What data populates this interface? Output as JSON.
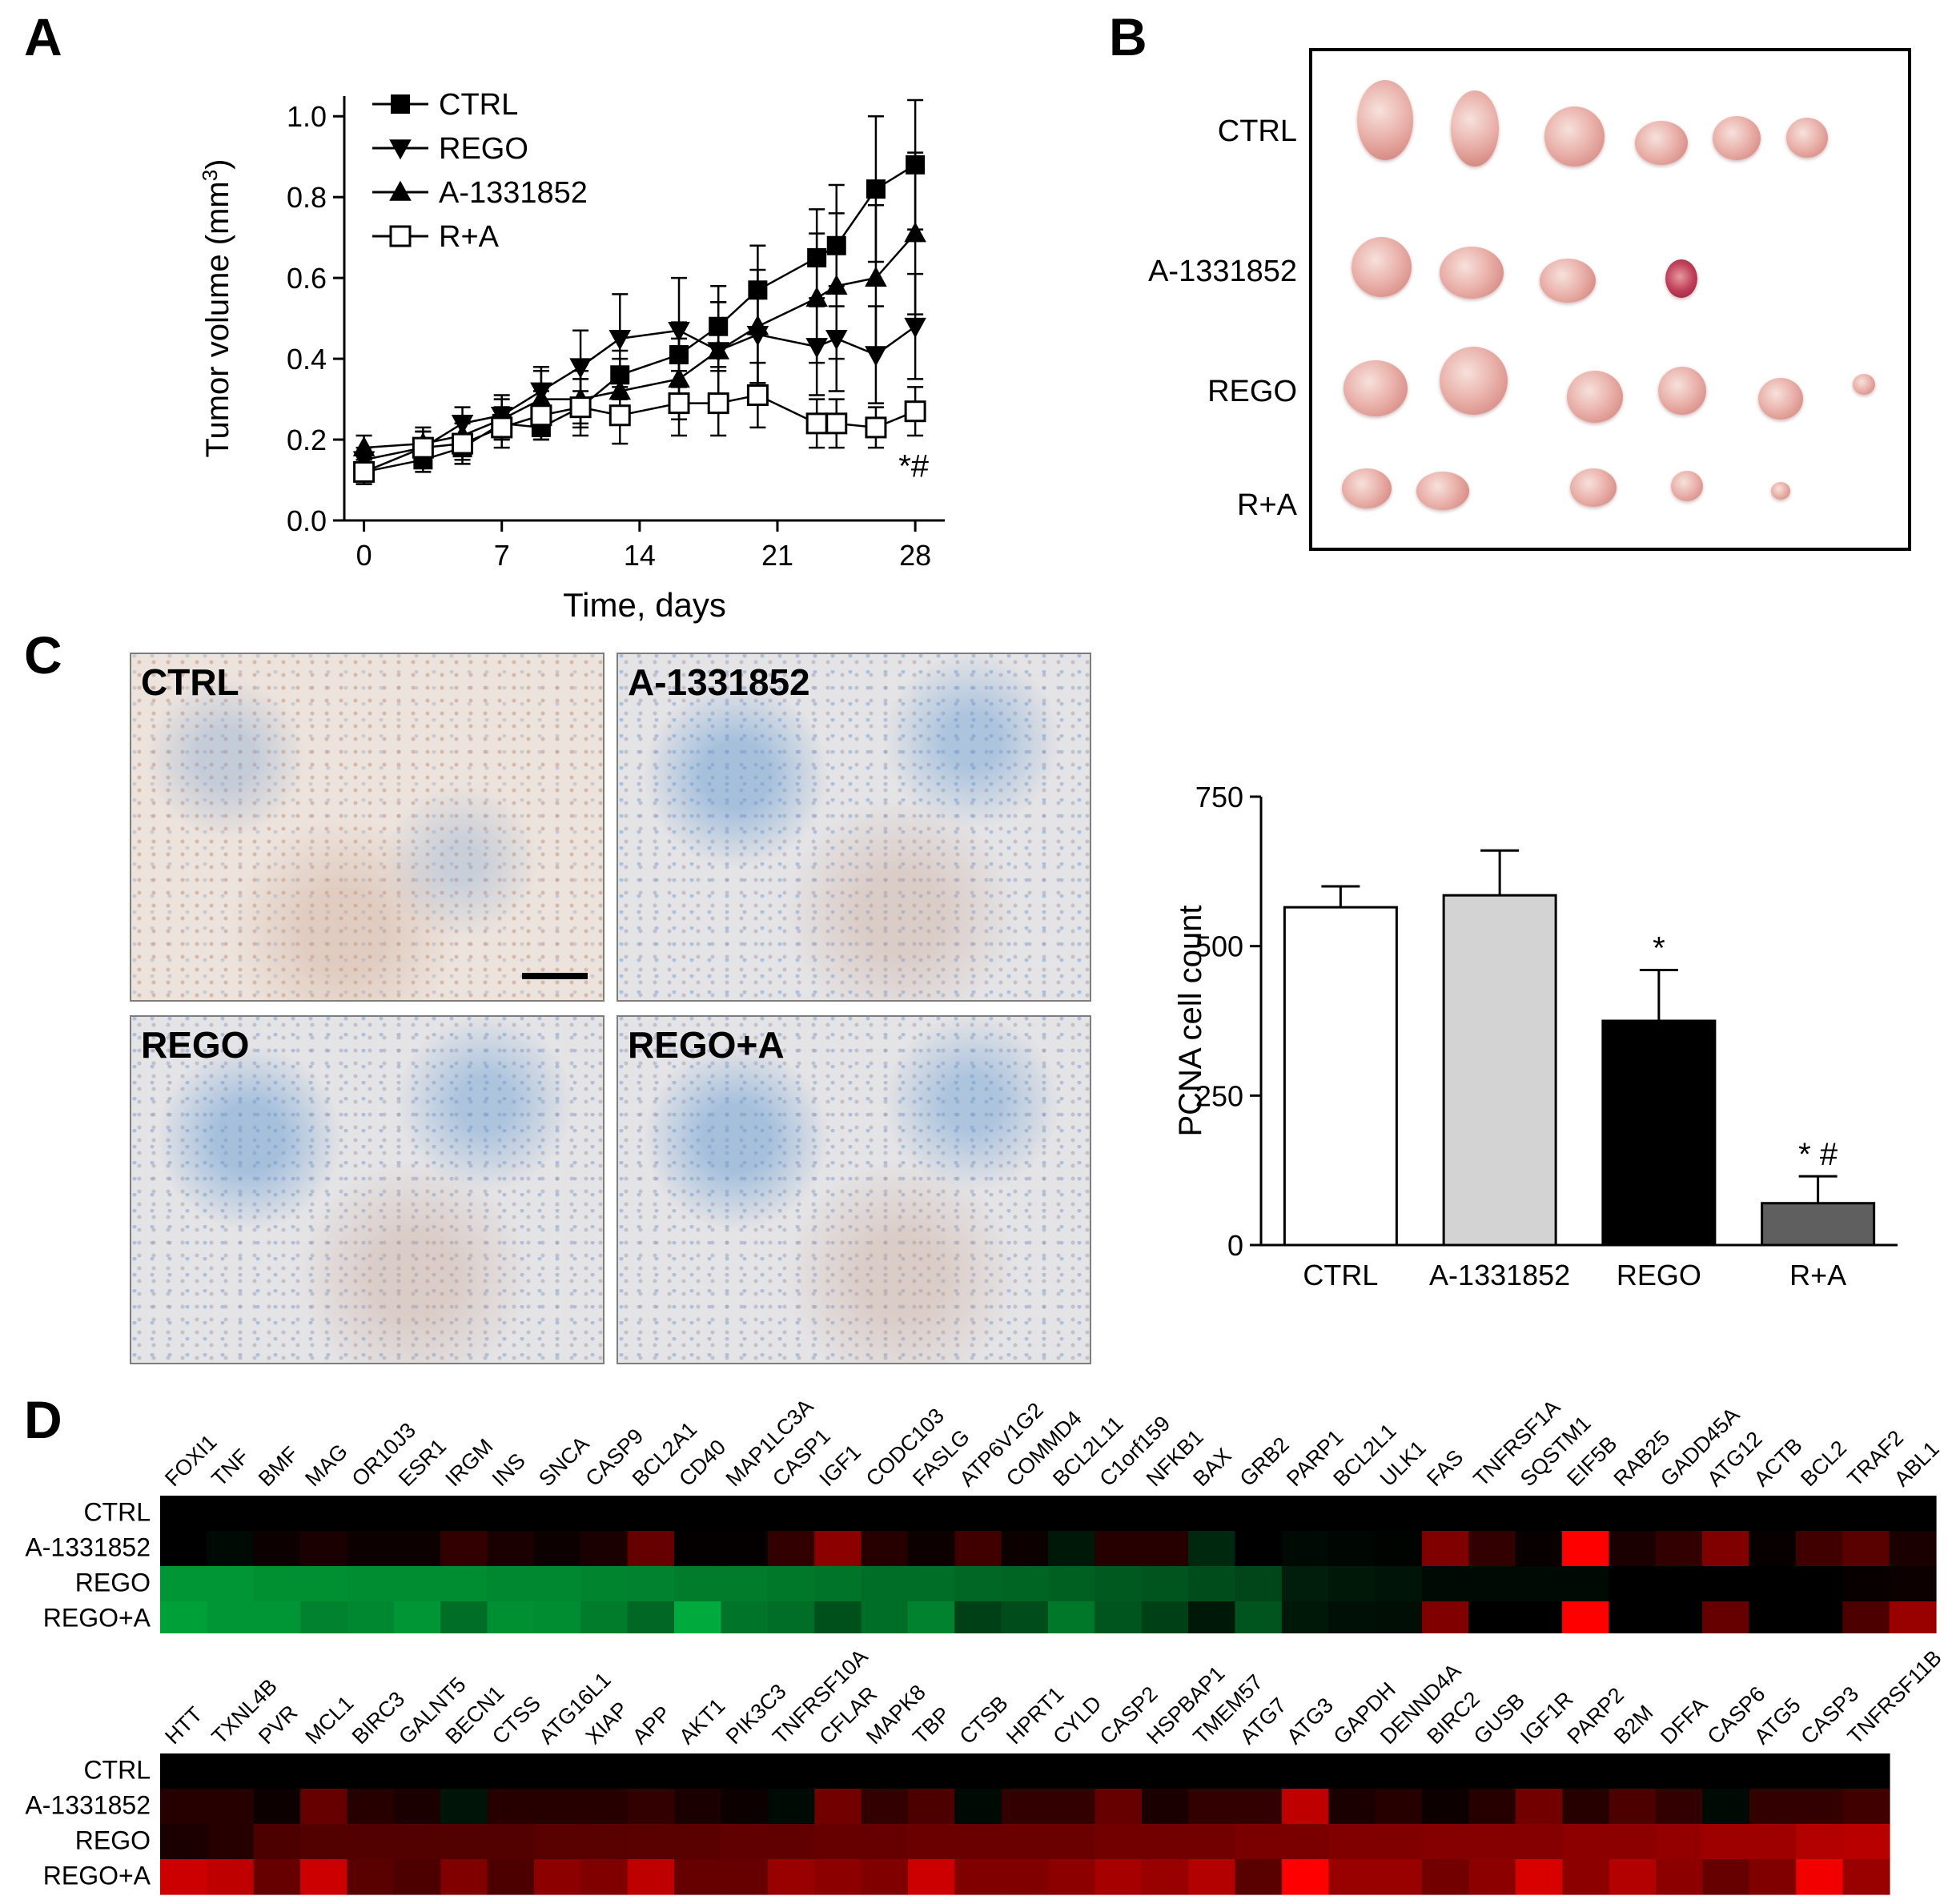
{
  "panels": {
    "a": "A",
    "b": "B",
    "c": "C",
    "d": "D"
  },
  "panel_a": {
    "chart_data": {
      "type": "line",
      "xlabel": "Time, days",
      "ylabel_main": "Tumor volume (mm",
      "ylabel_sup": "3",
      "ylabel_end": ")",
      "xlim": [
        -1,
        29.5
      ],
      "ylim": [
        0,
        1.05
      ],
      "xticks": [
        0,
        7,
        14,
        21,
        28
      ],
      "yticks": [
        "0.0",
        "0.2",
        "0.4",
        "0.6",
        "0.8",
        "1.0"
      ],
      "x": [
        0,
        3,
        5,
        7,
        9,
        11,
        13,
        16,
        18,
        20,
        23,
        24,
        26,
        28
      ],
      "series": [
        {
          "name": "CTRL",
          "marker": "square-filled",
          "values": [
            0.12,
            0.15,
            0.18,
            0.24,
            0.23,
            0.28,
            0.36,
            0.41,
            0.48,
            0.57,
            0.65,
            0.68,
            0.82,
            0.88
          ],
          "errors": [
            0.03,
            0.03,
            0.03,
            0.04,
            0.03,
            0.04,
            0.06,
            0.08,
            0.1,
            0.11,
            0.12,
            0.15,
            0.18,
            0.16
          ]
        },
        {
          "name": "REGO",
          "marker": "triangle-down",
          "values": [
            0.15,
            0.18,
            0.24,
            0.26,
            0.32,
            0.38,
            0.45,
            0.47,
            0.42,
            0.46,
            0.43,
            0.45,
            0.41,
            0.48
          ],
          "errors": [
            0.03,
            0.04,
            0.04,
            0.05,
            0.06,
            0.09,
            0.11,
            0.13,
            0.12,
            0.12,
            0.12,
            0.13,
            0.12,
            0.13
          ]
        },
        {
          "name": "A-1331852",
          "marker": "triangle-up",
          "values": [
            0.18,
            0.19,
            0.21,
            0.25,
            0.3,
            0.3,
            0.32,
            0.35,
            0.42,
            0.48,
            0.55,
            0.58,
            0.6,
            0.71
          ],
          "errors": [
            0.03,
            0.03,
            0.04,
            0.05,
            0.07,
            0.07,
            0.08,
            0.1,
            0.12,
            0.14,
            0.16,
            0.18,
            0.18,
            0.2
          ]
        },
        {
          "name": "R+A",
          "marker": "square-open",
          "values": [
            0.12,
            0.18,
            0.19,
            0.23,
            0.26,
            0.28,
            0.26,
            0.29,
            0.29,
            0.31,
            0.24,
            0.24,
            0.23,
            0.27
          ],
          "errors": [
            0.03,
            0.05,
            0.05,
            0.05,
            0.06,
            0.07,
            0.07,
            0.08,
            0.08,
            0.08,
            0.06,
            0.06,
            0.05,
            0.06
          ]
        }
      ],
      "annotation": "*#"
    }
  },
  "panel_b": {
    "rows": [
      {
        "label": "CTRL",
        "tumors": [
          [
            1730,
            150,
            70,
            100,
            false
          ],
          [
            1842,
            160,
            60,
            95,
            false
          ],
          [
            1966,
            170,
            75,
            75,
            false
          ],
          [
            2075,
            178,
            66,
            55,
            false
          ],
          [
            2169,
            172,
            60,
            55,
            false
          ],
          [
            2257,
            172,
            52,
            50,
            false
          ]
        ]
      },
      {
        "label": "A-1331852",
        "tumors": [
          [
            1725,
            333,
            75,
            75,
            false
          ],
          [
            1838,
            340,
            80,
            65,
            false
          ],
          [
            1958,
            350,
            70,
            55,
            false
          ],
          [
            2100,
            348,
            40,
            48,
            true
          ]
        ]
      },
      {
        "label": "REGO",
        "tumors": [
          [
            1718,
            485,
            80,
            70,
            false
          ],
          [
            1840,
            475,
            85,
            85,
            false
          ],
          [
            1992,
            495,
            70,
            65,
            false
          ],
          [
            2101,
            488,
            60,
            60,
            false
          ],
          [
            2224,
            498,
            56,
            52,
            false
          ],
          [
            2328,
            480,
            28,
            26,
            false
          ]
        ]
      },
      {
        "label": "R+A",
        "tumors": [
          [
            1707,
            610,
            62,
            50,
            false
          ],
          [
            1802,
            613,
            66,
            48,
            false
          ],
          [
            1990,
            609,
            58,
            48,
            false
          ],
          [
            2107,
            607,
            40,
            38,
            false
          ],
          [
            2224,
            613,
            24,
            22,
            false
          ]
        ]
      }
    ]
  },
  "panel_c": {
    "images": [
      {
        "label": "CTRL",
        "scalebar": true,
        "blue": false
      },
      {
        "label": "A-1331852",
        "scalebar": false,
        "blue": true
      },
      {
        "label": "REGO",
        "scalebar": false,
        "blue": true
      },
      {
        "label": "REGO+A",
        "scalebar": false,
        "blue": true
      }
    ],
    "chart_data": {
      "type": "bar",
      "ylabel": "PCNA cell count",
      "ylim": [
        0,
        750
      ],
      "yticks": [
        "0",
        "250",
        "500",
        "750"
      ],
      "categories": [
        "CTRL",
        "A-1331852",
        "REGO",
        "R+A"
      ],
      "values": [
        565,
        585,
        375,
        70
      ],
      "errors": [
        35,
        75,
        85,
        45
      ],
      "colors": [
        "#ffffff",
        "#d3d3d3",
        "#000000",
        "#5f5f5f"
      ],
      "annotations": [
        "",
        "",
        "*",
        "* #"
      ]
    }
  },
  "panel_d": {
    "chart_data": [
      {
        "type": "heatmap",
        "rows": [
          "CTRL",
          "A-1331852",
          "REGO",
          "REGO+A"
        ],
        "columns": [
          "FOXI1",
          "TNF",
          "BMF",
          "MAG",
          "OR10J3",
          "ESR1",
          "IRGM",
          "INS",
          "SNCA",
          "CASP9",
          "BCL2A1",
          "CD40",
          "MAP1LC3A",
          "CASP1",
          "IGF1",
          "CODC103",
          "FASLG",
          "ATP6V1G2",
          "COMMD4",
          "BCL2L11",
          "C1orf159",
          "NFKB1",
          "BAX",
          "GRB2",
          "PARP1",
          "BCL2L1",
          "ULK1",
          "FAS",
          "TNFRSF1A",
          "SQSTM1",
          "EIF5B",
          "RAB25",
          "GADD45A",
          "ATG12",
          "ACTB",
          "BCL2",
          "TRAF2",
          "ABL1"
        ],
        "values": [
          [
            0,
            0,
            0,
            0,
            0,
            0,
            0,
            0,
            0,
            0,
            0,
            0,
            0,
            0,
            0,
            0,
            0,
            0,
            0,
            0,
            0,
            0,
            0,
            0,
            0,
            0,
            0,
            0,
            0,
            0,
            0,
            0,
            0,
            0,
            0,
            0,
            0,
            0
          ],
          [
            0,
            -0.05,
            0.05,
            0.1,
            0.05,
            0.05,
            0.2,
            0.1,
            0.05,
            0.1,
            0.4,
            0.02,
            0.02,
            0.2,
            0.55,
            0.15,
            0.05,
            0.25,
            0.05,
            -0.12,
            0.15,
            0.15,
            -0.2,
            0,
            -0.05,
            -0.03,
            -0.02,
            0.5,
            0.2,
            0.03,
            1,
            0.1,
            0.2,
            0.5,
            0.03,
            0.25,
            0.35,
            0.1
          ],
          [
            -0.75,
            -0.75,
            -0.72,
            -0.72,
            -0.7,
            -0.7,
            -0.7,
            -0.68,
            -0.68,
            -0.66,
            -0.65,
            -0.62,
            -0.62,
            -0.6,
            -0.58,
            -0.55,
            -0.55,
            -0.52,
            -0.5,
            -0.48,
            -0.45,
            -0.42,
            -0.38,
            -0.35,
            -0.15,
            -0.12,
            -0.1,
            -0.05,
            -0.05,
            -0.05,
            -0.05,
            0,
            0,
            0,
            0,
            0,
            0.03,
            0.05
          ],
          [
            -0.8,
            -0.75,
            -0.75,
            -0.65,
            -0.68,
            -0.75,
            -0.55,
            -0.72,
            -0.7,
            -0.62,
            -0.52,
            -0.85,
            -0.58,
            -0.55,
            -0.4,
            -0.55,
            -0.65,
            -0.32,
            -0.38,
            -0.6,
            -0.42,
            -0.32,
            -0.12,
            -0.42,
            -0.12,
            -0.08,
            -0.07,
            0.5,
            0,
            0,
            1,
            0,
            0,
            0.4,
            0,
            0,
            0.3,
            0.6
          ]
        ]
      },
      {
        "type": "heatmap",
        "rows": [
          "CTRL",
          "A-1331852",
          "REGO",
          "REGO+A"
        ],
        "columns": [
          "HTT",
          "TXNL4B",
          "PVR",
          "MCL1",
          "BIRC3",
          "GALNT5",
          "BECN1",
          "CTSS",
          "ATG16L1",
          "XIAP",
          "APP",
          "AKT1",
          "PIK3C3",
          "TNFRSF10A",
          "CFLAR",
          "MAPK8",
          "TBP",
          "CTSB",
          "HPRT1",
          "CYLD",
          "CASP2",
          "HSPBAP1",
          "TMEM57",
          "ATG7",
          "ATG3",
          "GAPDH",
          "DENND4A",
          "BIRC2",
          "GUSB",
          "IGF1R",
          "PARP2",
          "B2M",
          "DFFA",
          "CASP6",
          "ATG5",
          "CASP3",
          "TNFRSF11B"
        ],
        "values": [
          [
            0,
            0,
            0,
            0,
            0,
            0,
            0,
            0,
            0,
            0,
            0,
            0,
            0,
            0,
            0,
            0,
            0,
            0,
            0,
            0,
            0,
            0,
            0,
            0,
            0,
            0,
            0,
            0,
            0,
            0,
            0,
            0,
            0,
            0,
            0,
            0,
            0
          ],
          [
            0.15,
            0.15,
            0.05,
            0.4,
            0.15,
            0.1,
            -0.1,
            0.15,
            0.15,
            0.15,
            0.2,
            0.1,
            0.05,
            -0.05,
            0.45,
            0.2,
            0.3,
            -0.05,
            0.2,
            0.2,
            0.4,
            0.1,
            0.2,
            0.2,
            0.75,
            0.1,
            0.15,
            0.05,
            0.15,
            0.45,
            0.15,
            0.3,
            0.2,
            -0.05,
            0.2,
            0.2,
            0.25
          ],
          [
            0.1,
            0.15,
            0.3,
            0.32,
            0.32,
            0.32,
            0.32,
            0.32,
            0.35,
            0.35,
            0.35,
            0.35,
            0.38,
            0.38,
            0.4,
            0.4,
            0.42,
            0.42,
            0.42,
            0.42,
            0.45,
            0.45,
            0.45,
            0.48,
            0.48,
            0.5,
            0.5,
            0.52,
            0.52,
            0.52,
            0.55,
            0.55,
            0.58,
            0.62,
            0.62,
            0.7,
            0.72
          ],
          [
            0.8,
            0.75,
            0.4,
            0.8,
            0.35,
            0.3,
            0.5,
            0.3,
            0.55,
            0.5,
            0.75,
            0.4,
            0.4,
            0.6,
            0.55,
            0.5,
            0.8,
            0.5,
            0.5,
            0.55,
            0.65,
            0.6,
            0.7,
            0.35,
            1,
            0.6,
            0.6,
            0.45,
            0.55,
            0.85,
            0.55,
            0.7,
            0.55,
            0.4,
            0.5,
            0.95,
            0.6
          ]
        ]
      }
    ]
  }
}
